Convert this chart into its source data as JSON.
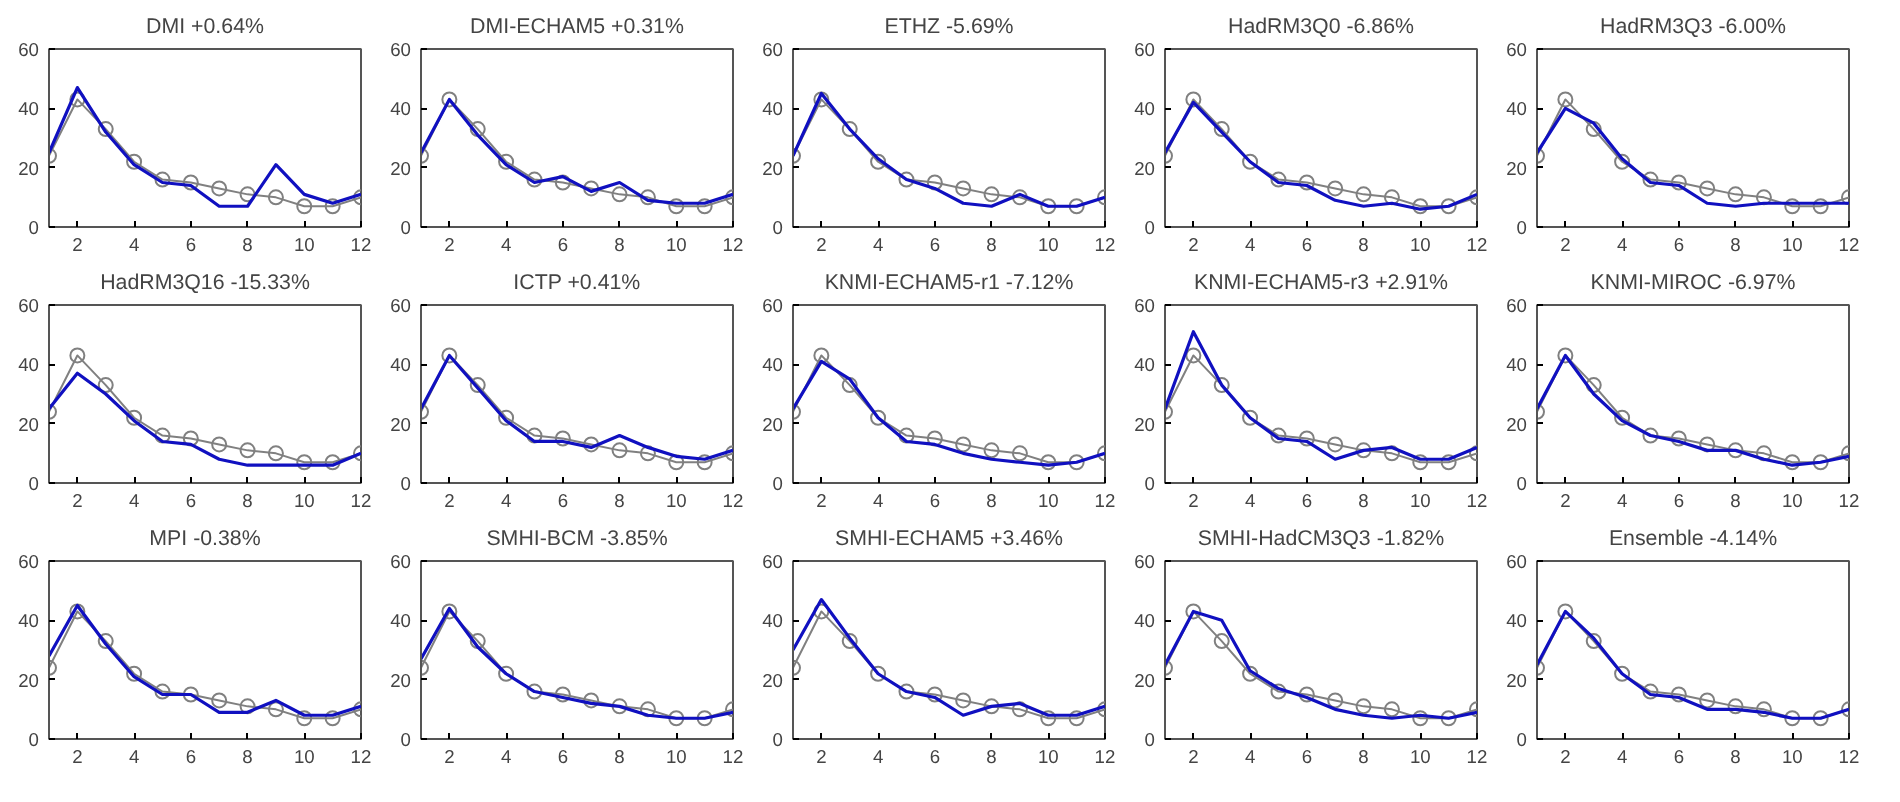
{
  "chart_data": [
    {
      "type": "line",
      "title": "DMI +0.64%",
      "x": [
        1,
        2,
        3,
        4,
        5,
        6,
        7,
        8,
        9,
        10,
        11,
        12
      ],
      "xlim": [
        1,
        12
      ],
      "xticks": [
        2,
        4,
        6,
        8,
        10,
        12
      ],
      "ylim": [
        0,
        60
      ],
      "yticks": [
        0,
        20,
        40,
        60
      ],
      "grid": false,
      "series": [
        {
          "color": "#808080",
          "marker": "circle",
          "values": [
            24,
            43,
            33,
            22,
            16,
            15,
            13,
            11,
            10,
            7,
            7,
            10
          ]
        },
        {
          "color": "#1010c0",
          "values": [
            25,
            47,
            32,
            21,
            15,
            14,
            7,
            7,
            21,
            11,
            8,
            11
          ]
        }
      ]
    },
    {
      "type": "line",
      "title": "DMI-ECHAM5 +0.31%",
      "x": [
        1,
        2,
        3,
        4,
        5,
        6,
        7,
        8,
        9,
        10,
        11,
        12
      ],
      "xlim": [
        1,
        12
      ],
      "xticks": [
        2,
        4,
        6,
        8,
        10,
        12
      ],
      "ylim": [
        0,
        60
      ],
      "yticks": [
        0,
        20,
        40,
        60
      ],
      "grid": false,
      "series": [
        {
          "color": "#808080",
          "marker": "circle",
          "values": [
            24,
            43,
            33,
            22,
            16,
            15,
            13,
            11,
            10,
            7,
            7,
            10
          ]
        },
        {
          "color": "#1010c0",
          "values": [
            25,
            43,
            31,
            21,
            15,
            17,
            12,
            15,
            9,
            8,
            8,
            11
          ]
        }
      ]
    },
    {
      "type": "line",
      "title": "ETHZ -5.69%",
      "x": [
        1,
        2,
        3,
        4,
        5,
        6,
        7,
        8,
        9,
        10,
        11,
        12
      ],
      "xlim": [
        1,
        12
      ],
      "xticks": [
        2,
        4,
        6,
        8,
        10,
        12
      ],
      "ylim": [
        0,
        60
      ],
      "yticks": [
        0,
        20,
        40,
        60
      ],
      "grid": false,
      "series": [
        {
          "color": "#808080",
          "marker": "circle",
          "values": [
            24,
            43,
            33,
            22,
            16,
            15,
            13,
            11,
            10,
            7,
            7,
            10
          ]
        },
        {
          "color": "#1010c0",
          "values": [
            24,
            45,
            33,
            23,
            16,
            13,
            8,
            7,
            11,
            7,
            7,
            10
          ]
        }
      ]
    },
    {
      "type": "line",
      "title": "HadRM3Q0 -6.86%",
      "x": [
        1,
        2,
        3,
        4,
        5,
        6,
        7,
        8,
        9,
        10,
        11,
        12
      ],
      "xlim": [
        1,
        12
      ],
      "xticks": [
        2,
        4,
        6,
        8,
        10,
        12
      ],
      "ylim": [
        0,
        60
      ],
      "yticks": [
        0,
        20,
        40,
        60
      ],
      "grid": false,
      "series": [
        {
          "color": "#808080",
          "marker": "circle",
          "values": [
            24,
            43,
            33,
            22,
            16,
            15,
            13,
            11,
            10,
            7,
            7,
            10
          ]
        },
        {
          "color": "#1010c0",
          "values": [
            25,
            42,
            32,
            22,
            15,
            14,
            9,
            7,
            8,
            6,
            7,
            11
          ]
        }
      ]
    },
    {
      "type": "line",
      "title": "HadRM3Q3 -6.00%",
      "x": [
        1,
        2,
        3,
        4,
        5,
        6,
        7,
        8,
        9,
        10,
        11,
        12
      ],
      "xlim": [
        1,
        12
      ],
      "xticks": [
        2,
        4,
        6,
        8,
        10,
        12
      ],
      "ylim": [
        0,
        60
      ],
      "yticks": [
        0,
        20,
        40,
        60
      ],
      "grid": false,
      "series": [
        {
          "color": "#808080",
          "marker": "circle",
          "values": [
            24,
            43,
            33,
            22,
            16,
            15,
            13,
            11,
            10,
            7,
            7,
            10
          ]
        },
        {
          "color": "#1010c0",
          "values": [
            25,
            40,
            35,
            23,
            15,
            14,
            8,
            7,
            8,
            8,
            8,
            8
          ]
        }
      ]
    },
    {
      "type": "line",
      "title": "HadRM3Q16 -15.33%",
      "x": [
        1,
        2,
        3,
        4,
        5,
        6,
        7,
        8,
        9,
        10,
        11,
        12
      ],
      "xlim": [
        1,
        12
      ],
      "xticks": [
        2,
        4,
        6,
        8,
        10,
        12
      ],
      "ylim": [
        0,
        60
      ],
      "yticks": [
        0,
        20,
        40,
        60
      ],
      "grid": false,
      "series": [
        {
          "color": "#808080",
          "marker": "circle",
          "values": [
            24,
            43,
            33,
            22,
            16,
            15,
            13,
            11,
            10,
            7,
            7,
            10
          ]
        },
        {
          "color": "#1010c0",
          "values": [
            25,
            37,
            30,
            21,
            14,
            13,
            8,
            6,
            6,
            6,
            6,
            10
          ]
        }
      ]
    },
    {
      "type": "line",
      "title": "ICTP +0.41%",
      "x": [
        1,
        2,
        3,
        4,
        5,
        6,
        7,
        8,
        9,
        10,
        11,
        12
      ],
      "xlim": [
        1,
        12
      ],
      "xticks": [
        2,
        4,
        6,
        8,
        10,
        12
      ],
      "ylim": [
        0,
        60
      ],
      "yticks": [
        0,
        20,
        40,
        60
      ],
      "grid": false,
      "series": [
        {
          "color": "#808080",
          "marker": "circle",
          "values": [
            24,
            43,
            33,
            22,
            16,
            15,
            13,
            11,
            10,
            7,
            7,
            10
          ]
        },
        {
          "color": "#1010c0",
          "values": [
            25,
            43,
            32,
            21,
            14,
            14,
            12,
            16,
            12,
            9,
            8,
            11
          ]
        }
      ]
    },
    {
      "type": "line",
      "title": "KNMI-ECHAM5-r1 -7.12%",
      "x": [
        1,
        2,
        3,
        4,
        5,
        6,
        7,
        8,
        9,
        10,
        11,
        12
      ],
      "xlim": [
        1,
        12
      ],
      "xticks": [
        2,
        4,
        6,
        8,
        10,
        12
      ],
      "ylim": [
        0,
        60
      ],
      "yticks": [
        0,
        20,
        40,
        60
      ],
      "grid": false,
      "series": [
        {
          "color": "#808080",
          "marker": "circle",
          "values": [
            24,
            43,
            33,
            22,
            16,
            15,
            13,
            11,
            10,
            7,
            7,
            10
          ]
        },
        {
          "color": "#1010c0",
          "values": [
            25,
            41,
            35,
            22,
            14,
            13,
            10,
            8,
            7,
            6,
            7,
            10
          ]
        }
      ]
    },
    {
      "type": "line",
      "title": "KNMI-ECHAM5-r3 +2.91%",
      "x": [
        1,
        2,
        3,
        4,
        5,
        6,
        7,
        8,
        9,
        10,
        11,
        12
      ],
      "xlim": [
        1,
        12
      ],
      "xticks": [
        2,
        4,
        6,
        8,
        10,
        12
      ],
      "ylim": [
        0,
        60
      ],
      "yticks": [
        0,
        20,
        40,
        60
      ],
      "grid": false,
      "series": [
        {
          "color": "#808080",
          "marker": "circle",
          "values": [
            24,
            43,
            33,
            22,
            16,
            15,
            13,
            11,
            10,
            7,
            7,
            10
          ]
        },
        {
          "color": "#1010c0",
          "values": [
            25,
            51,
            33,
            22,
            15,
            14,
            8,
            11,
            12,
            8,
            8,
            12
          ]
        }
      ]
    },
    {
      "type": "line",
      "title": "KNMI-MIROC -6.97%",
      "x": [
        1,
        2,
        3,
        4,
        5,
        6,
        7,
        8,
        9,
        10,
        11,
        12
      ],
      "xlim": [
        1,
        12
      ],
      "xticks": [
        2,
        4,
        6,
        8,
        10,
        12
      ],
      "ylim": [
        0,
        60
      ],
      "yticks": [
        0,
        20,
        40,
        60
      ],
      "grid": false,
      "series": [
        {
          "color": "#808080",
          "marker": "circle",
          "values": [
            24,
            43,
            33,
            22,
            16,
            15,
            13,
            11,
            10,
            7,
            7,
            10
          ]
        },
        {
          "color": "#1010c0",
          "values": [
            25,
            43,
            30,
            21,
            16,
            14,
            11,
            11,
            8,
            6,
            7,
            9
          ]
        }
      ]
    },
    {
      "type": "line",
      "title": "MPI -0.38%",
      "x": [
        1,
        2,
        3,
        4,
        5,
        6,
        7,
        8,
        9,
        10,
        11,
        12
      ],
      "xlim": [
        1,
        12
      ],
      "xticks": [
        2,
        4,
        6,
        8,
        10,
        12
      ],
      "ylim": [
        0,
        60
      ],
      "yticks": [
        0,
        20,
        40,
        60
      ],
      "grid": false,
      "series": [
        {
          "color": "#808080",
          "marker": "circle",
          "values": [
            24,
            43,
            33,
            22,
            16,
            15,
            13,
            11,
            10,
            7,
            7,
            10
          ]
        },
        {
          "color": "#1010c0",
          "values": [
            28,
            45,
            32,
            21,
            15,
            15,
            9,
            9,
            13,
            8,
            8,
            11
          ]
        }
      ]
    },
    {
      "type": "line",
      "title": "SMHI-BCM -3.85%",
      "x": [
        1,
        2,
        3,
        4,
        5,
        6,
        7,
        8,
        9,
        10,
        11,
        12
      ],
      "xlim": [
        1,
        12
      ],
      "xticks": [
        2,
        4,
        6,
        8,
        10,
        12
      ],
      "ylim": [
        0,
        60
      ],
      "yticks": [
        0,
        20,
        40,
        60
      ],
      "grid": false,
      "series": [
        {
          "color": "#808080",
          "marker": "circle",
          "values": [
            24,
            43,
            33,
            22,
            16,
            15,
            13,
            11,
            10,
            7,
            7,
            10
          ]
        },
        {
          "color": "#1010c0",
          "values": [
            27,
            44,
            31,
            22,
            16,
            14,
            12,
            11,
            8,
            7,
            7,
            9
          ]
        }
      ]
    },
    {
      "type": "line",
      "title": "SMHI-ECHAM5 +3.46%",
      "x": [
        1,
        2,
        3,
        4,
        5,
        6,
        7,
        8,
        9,
        10,
        11,
        12
      ],
      "xlim": [
        1,
        12
      ],
      "xticks": [
        2,
        4,
        6,
        8,
        10,
        12
      ],
      "ylim": [
        0,
        60
      ],
      "yticks": [
        0,
        20,
        40,
        60
      ],
      "grid": false,
      "series": [
        {
          "color": "#808080",
          "marker": "circle",
          "values": [
            24,
            43,
            33,
            22,
            16,
            15,
            13,
            11,
            10,
            7,
            7,
            10
          ]
        },
        {
          "color": "#1010c0",
          "values": [
            30,
            47,
            34,
            22,
            16,
            14,
            8,
            11,
            12,
            8,
            8,
            11
          ]
        }
      ]
    },
    {
      "type": "line",
      "title": "SMHI-HadCM3Q3 -1.82%",
      "x": [
        1,
        2,
        3,
        4,
        5,
        6,
        7,
        8,
        9,
        10,
        11,
        12
      ],
      "xlim": [
        1,
        12
      ],
      "xticks": [
        2,
        4,
        6,
        8,
        10,
        12
      ],
      "ylim": [
        0,
        60
      ],
      "yticks": [
        0,
        20,
        40,
        60
      ],
      "grid": false,
      "series": [
        {
          "color": "#808080",
          "marker": "circle",
          "values": [
            24,
            43,
            33,
            22,
            16,
            15,
            13,
            11,
            10,
            7,
            7,
            10
          ]
        },
        {
          "color": "#1010c0",
          "values": [
            25,
            43,
            40,
            23,
            17,
            14,
            10,
            8,
            7,
            8,
            7,
            9
          ]
        }
      ]
    },
    {
      "type": "line",
      "title": "Ensemble -4.14%",
      "x": [
        1,
        2,
        3,
        4,
        5,
        6,
        7,
        8,
        9,
        10,
        11,
        12
      ],
      "xlim": [
        1,
        12
      ],
      "xticks": [
        2,
        4,
        6,
        8,
        10,
        12
      ],
      "ylim": [
        0,
        60
      ],
      "yticks": [
        0,
        20,
        40,
        60
      ],
      "grid": false,
      "series": [
        {
          "color": "#808080",
          "marker": "circle",
          "values": [
            24,
            43,
            33,
            22,
            16,
            15,
            13,
            11,
            10,
            7,
            7,
            10
          ]
        },
        {
          "color": "#1010c0",
          "values": [
            25,
            43,
            34,
            22,
            15,
            14,
            10,
            10,
            9,
            7,
            7,
            10
          ]
        }
      ]
    }
  ]
}
